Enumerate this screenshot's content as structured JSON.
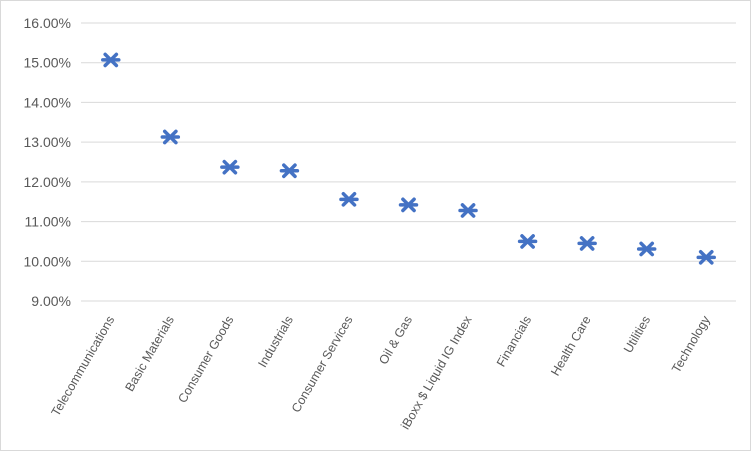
{
  "chart_data": {
    "type": "scatter",
    "title": "",
    "xlabel": "",
    "ylabel": "",
    "categories": [
      "Telecommunications",
      "Basic Materials",
      "Consumer Goods",
      "Industrials",
      "Consumer Services",
      "Oil & Gas",
      "iBoxx $ Liquid IG Index",
      "Financials",
      "Health Care",
      "Utilities",
      "Technology"
    ],
    "series": [
      {
        "values": [
          15.07,
          13.13,
          12.37,
          12.28,
          11.56,
          11.42,
          11.28,
          10.5,
          10.45,
          10.31,
          10.1
        ],
        "color": "#4472c4",
        "marker": "star"
      }
    ],
    "ylim": [
      9.0,
      16.0
    ],
    "yticks": [
      "16.00%",
      "15.00%",
      "14.00%",
      "13.00%",
      "12.00%",
      "11.00%",
      "10.00%",
      "9.00%"
    ],
    "ytick_values": [
      16,
      15,
      14,
      13,
      12,
      11,
      10,
      9
    ],
    "grid": true,
    "legend": "none"
  }
}
